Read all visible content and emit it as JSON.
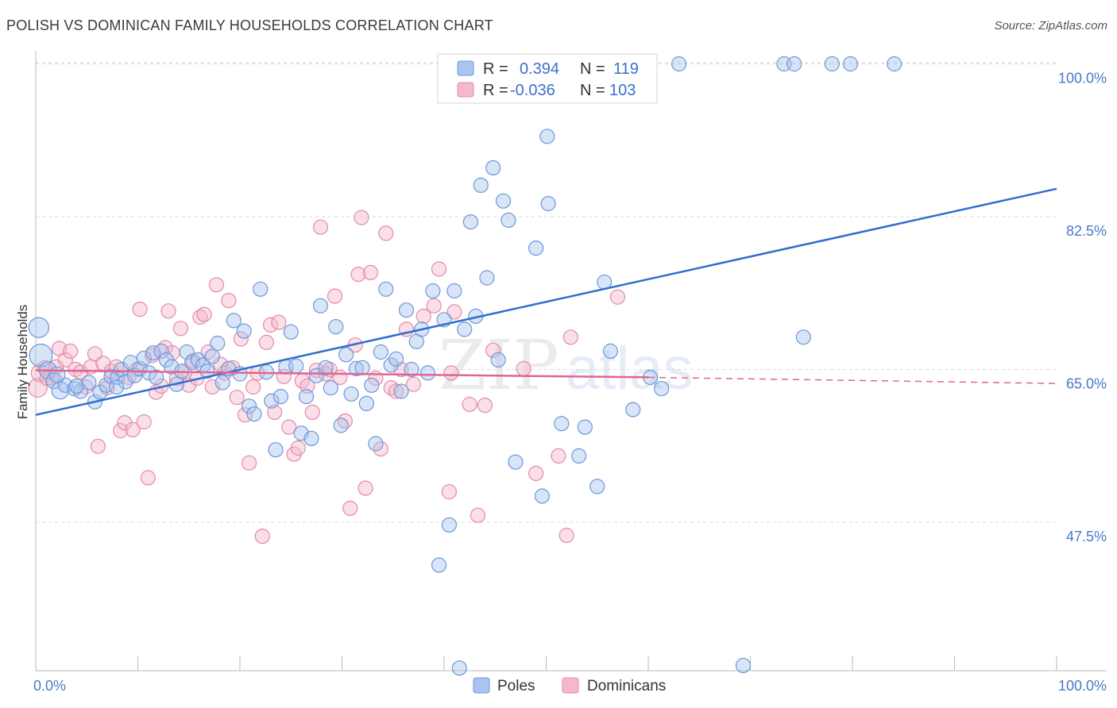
{
  "title": "POLISH VS DOMINICAN FAMILY HOUSEHOLDS CORRELATION CHART",
  "source": "Source: ZipAtlas.com",
  "watermark": {
    "zip": "ZIP",
    "atlas": "atlas"
  },
  "colors": {
    "poles_fill": "#a9c4ee",
    "poles_stroke": "#6f98d8",
    "poles_line": "#2f6fcf",
    "dom_fill": "#f5b8cb",
    "dom_stroke": "#e48aa8",
    "dom_line": "#e0668f",
    "tick_label": "#4a78c8",
    "grid": "#d9d9d9"
  },
  "legend": {
    "r_label": "R =",
    "n_label": "N =",
    "rows": [
      {
        "series": "Poles",
        "r": "0.394",
        "n": "119"
      },
      {
        "series": "Dominicans",
        "r": "-0.036",
        "n": "103"
      }
    ]
  },
  "bottom_legend": [
    "Poles",
    "Dominicans"
  ],
  "chart_data": {
    "type": "scatter",
    "title": "POLISH VS DOMINICAN FAMILY HOUSEHOLDS CORRELATION CHART",
    "xlabel": "",
    "ylabel": "Family Households",
    "xlim": [
      0,
      100
    ],
    "ylim": [
      30.5,
      101.5
    ],
    "x_tick_labels": [
      "0.0%",
      "100.0%"
    ],
    "y_ticks": [
      47.5,
      65.0,
      82.5,
      100.0
    ],
    "y_tick_labels": [
      "47.5%",
      "65.0%",
      "82.5%",
      "100.0%"
    ],
    "grid": true,
    "legend_position": "top-center",
    "series": [
      {
        "name": "Poles",
        "r": 0.394,
        "n": 119,
        "trend": {
          "x": [
            0,
            100
          ],
          "y": [
            59.8,
            85.7
          ],
          "style": "solid"
        },
        "points": [
          [
            0.3,
            69.8,
            1.4
          ],
          [
            0.5,
            66.6,
            1.6
          ],
          [
            1.2,
            64.9,
            1.2
          ],
          [
            1.8,
            63.7,
            1.1
          ],
          [
            2.4,
            62.6,
            1.2
          ],
          [
            2.9,
            63.2,
            1.0
          ],
          [
            3.8,
            62.8,
            1.0
          ],
          [
            4.4,
            62.5,
            1.0
          ],
          [
            5.2,
            63.5,
            1.0
          ],
          [
            5.8,
            61.3,
            1.0
          ],
          [
            6.3,
            62.4,
            1.0
          ],
          [
            6.9,
            63.2,
            1.0
          ],
          [
            7.4,
            64.2,
            1.0
          ],
          [
            8.0,
            64.1,
            1.0
          ],
          [
            8.4,
            65.0,
            1.0
          ],
          [
            8.8,
            63.6,
            1.0
          ],
          [
            9.3,
            65.8,
            1.0
          ],
          [
            9.7,
            64.3,
            1.0
          ],
          [
            10.2,
            65.1,
            1.0
          ],
          [
            10.6,
            66.3,
            1.0
          ],
          [
            11.1,
            64.6,
            1.0
          ],
          [
            11.5,
            66.9,
            1.0
          ],
          [
            11.8,
            64.1,
            1.0
          ],
          [
            12.3,
            67.1,
            1.0
          ],
          [
            12.8,
            66.1,
            1.0
          ],
          [
            13.3,
            65.3,
            1.0
          ],
          [
            13.8,
            63.3,
            1.0
          ],
          [
            14.3,
            64.8,
            1.0
          ],
          [
            14.8,
            67.0,
            1.0
          ],
          [
            15.3,
            65.8,
            1.0
          ],
          [
            15.9,
            66.1,
            1.0
          ],
          [
            16.4,
            65.5,
            1.0
          ],
          [
            16.8,
            64.8,
            1.0
          ],
          [
            17.3,
            66.5,
            1.0
          ],
          [
            17.8,
            68.0,
            1.0
          ],
          [
            18.3,
            63.5,
            1.0
          ],
          [
            18.9,
            65.1,
            1.0
          ],
          [
            19.4,
            70.6,
            1.0
          ],
          [
            20.0,
            64.5,
            1.0
          ],
          [
            20.4,
            69.4,
            1.0
          ],
          [
            20.9,
            60.8,
            1.0
          ],
          [
            21.4,
            59.9,
            1.0
          ],
          [
            22.0,
            74.2,
            1.0
          ],
          [
            22.6,
            64.7,
            1.0
          ],
          [
            23.1,
            61.4,
            1.0
          ],
          [
            23.5,
            55.8,
            1.0
          ],
          [
            24.0,
            61.9,
            1.0
          ],
          [
            24.5,
            65.3,
            1.0
          ],
          [
            25.0,
            69.3,
            1.0
          ],
          [
            25.5,
            65.4,
            1.0
          ],
          [
            26.0,
            57.7,
            1.0
          ],
          [
            26.5,
            61.9,
            1.0
          ],
          [
            27.0,
            57.1,
            1.0
          ],
          [
            27.5,
            64.3,
            1.0
          ],
          [
            27.9,
            72.3,
            1.0
          ],
          [
            28.4,
            65.2,
            1.0
          ],
          [
            28.9,
            62.9,
            1.0
          ],
          [
            29.4,
            69.9,
            1.0
          ],
          [
            29.9,
            58.6,
            1.0
          ],
          [
            30.4,
            66.7,
            1.0
          ],
          [
            30.9,
            62.2,
            1.0
          ],
          [
            31.4,
            65.1,
            1.0
          ],
          [
            32.0,
            65.2,
            1.0
          ],
          [
            32.4,
            61.1,
            1.0
          ],
          [
            32.9,
            63.2,
            1.0
          ],
          [
            33.3,
            56.5,
            1.0
          ],
          [
            33.8,
            67.0,
            1.0
          ],
          [
            34.3,
            74.2,
            1.0
          ],
          [
            34.8,
            65.5,
            1.0
          ],
          [
            35.3,
            66.2,
            1.0
          ],
          [
            35.8,
            62.5,
            1.0
          ],
          [
            36.3,
            71.8,
            1.0
          ],
          [
            36.8,
            65.0,
            1.0
          ],
          [
            37.3,
            68.2,
            1.0
          ],
          [
            37.8,
            69.6,
            1.0
          ],
          [
            38.4,
            64.6,
            1.0
          ],
          [
            38.9,
            74.0,
            1.0
          ],
          [
            39.5,
            42.6,
            1.0
          ],
          [
            40.0,
            70.7,
            1.0
          ],
          [
            40.5,
            47.2,
            1.0
          ],
          [
            41.0,
            74.0,
            1.0
          ],
          [
            41.5,
            30.8,
            1.0
          ],
          [
            42.0,
            69.6,
            1.0
          ],
          [
            42.6,
            81.9,
            1.0
          ],
          [
            43.1,
            71.1,
            1.0
          ],
          [
            43.6,
            86.1,
            1.0
          ],
          [
            44.2,
            75.5,
            1.0
          ],
          [
            44.8,
            88.1,
            1.0
          ],
          [
            45.3,
            66.1,
            1.0
          ],
          [
            45.8,
            84.3,
            1.0
          ],
          [
            46.3,
            82.1,
            1.0
          ],
          [
            47.0,
            54.4,
            1.0
          ],
          [
            47.6,
            100.0,
            1.0
          ],
          [
            48.2,
            100.0,
            1.0
          ],
          [
            49.0,
            78.9,
            1.0
          ],
          [
            49.6,
            50.5,
            1.0
          ],
          [
            50.1,
            91.7,
            1.0
          ],
          [
            50.2,
            84.0,
            1.0
          ],
          [
            51.5,
            58.8,
            1.0
          ],
          [
            52.5,
            100.0,
            1.0
          ],
          [
            53.2,
            55.1,
            1.0
          ],
          [
            53.8,
            58.4,
            1.0
          ],
          [
            55.0,
            51.6,
            1.0
          ],
          [
            55.7,
            75.0,
            1.0
          ],
          [
            56.3,
            67.1,
            1.0
          ],
          [
            58.5,
            60.4,
            1.0
          ],
          [
            60.2,
            64.1,
            1.0
          ],
          [
            61.3,
            62.8,
            1.0
          ],
          [
            63.0,
            100.0,
            1.0
          ],
          [
            69.3,
            31.1,
            1.0
          ],
          [
            73.3,
            100.0,
            1.0
          ],
          [
            74.3,
            100.0,
            1.0
          ],
          [
            75.2,
            68.7,
            1.0
          ],
          [
            78.0,
            100.0,
            1.0
          ],
          [
            79.8,
            100.0,
            1.0
          ],
          [
            84.1,
            100.0,
            1.0
          ],
          [
            2.1,
            64.4,
            1.1
          ],
          [
            4.0,
            63.1,
            1.0
          ],
          [
            7.9,
            63.0,
            1.0
          ]
        ]
      },
      {
        "name": "Dominicans",
        "r": -0.036,
        "n": 103,
        "trend": {
          "x": [
            0,
            60
          ],
          "y": [
            64.9,
            64.1
          ],
          "style": "solid"
        },
        "trend_extension": {
          "x": [
            60,
            100
          ],
          "y": [
            64.1,
            63.4
          ],
          "style": "dashed"
        },
        "points": [
          [
            0.2,
            62.9,
            1.3
          ],
          [
            0.4,
            64.6,
            1.2
          ],
          [
            0.9,
            65.2,
            1.0
          ],
          [
            1.5,
            64.1,
            1.1
          ],
          [
            2.0,
            65.3,
            1.0
          ],
          [
            2.3,
            67.4,
            1.0
          ],
          [
            2.9,
            66.1,
            1.0
          ],
          [
            3.4,
            67.1,
            1.0
          ],
          [
            3.9,
            65.0,
            1.0
          ],
          [
            4.4,
            64.7,
            1.0
          ],
          [
            4.9,
            63.0,
            1.0
          ],
          [
            5.4,
            65.3,
            1.0
          ],
          [
            5.8,
            66.8,
            1.0
          ],
          [
            6.1,
            56.2,
            1.0
          ],
          [
            6.6,
            65.7,
            1.0
          ],
          [
            7.0,
            62.9,
            1.0
          ],
          [
            7.4,
            64.8,
            1.0
          ],
          [
            7.9,
            65.3,
            1.0
          ],
          [
            8.3,
            58.0,
            1.0
          ],
          [
            8.7,
            58.9,
            1.0
          ],
          [
            9.1,
            64.1,
            1.0
          ],
          [
            9.5,
            58.1,
            1.0
          ],
          [
            9.9,
            65.0,
            1.0
          ],
          [
            10.2,
            71.9,
            1.0
          ],
          [
            10.6,
            59.0,
            1.0
          ],
          [
            11.0,
            52.6,
            1.0
          ],
          [
            11.4,
            66.6,
            1.0
          ],
          [
            11.8,
            62.4,
            1.0
          ],
          [
            12.3,
            63.1,
            1.0
          ],
          [
            12.7,
            67.5,
            1.0
          ],
          [
            13.0,
            71.7,
            1.0
          ],
          [
            13.4,
            66.9,
            1.0
          ],
          [
            13.8,
            64.0,
            1.0
          ],
          [
            14.2,
            69.7,
            1.0
          ],
          [
            14.6,
            64.7,
            1.0
          ],
          [
            15.0,
            63.2,
            1.0
          ],
          [
            15.4,
            66.0,
            1.0
          ],
          [
            15.8,
            64.0,
            1.0
          ],
          [
            16.1,
            71.0,
            1.0
          ],
          [
            16.5,
            71.3,
            1.0
          ],
          [
            16.9,
            67.0,
            1.0
          ],
          [
            17.3,
            63.0,
            1.0
          ],
          [
            17.7,
            74.7,
            1.0
          ],
          [
            18.1,
            65.6,
            1.0
          ],
          [
            18.5,
            64.6,
            1.0
          ],
          [
            18.9,
            72.9,
            1.0
          ],
          [
            19.3,
            65.2,
            1.0
          ],
          [
            19.7,
            61.8,
            1.0
          ],
          [
            20.1,
            68.5,
            1.0
          ],
          [
            20.5,
            59.8,
            1.0
          ],
          [
            20.9,
            54.3,
            1.0
          ],
          [
            21.3,
            63.0,
            1.0
          ],
          [
            21.7,
            64.6,
            1.0
          ],
          [
            22.2,
            45.9,
            1.0
          ],
          [
            22.6,
            68.1,
            1.0
          ],
          [
            23.0,
            70.1,
            1.0
          ],
          [
            23.4,
            60.1,
            1.0
          ],
          [
            23.8,
            70.4,
            1.0
          ],
          [
            24.3,
            64.2,
            1.0
          ],
          [
            24.8,
            58.4,
            1.0
          ],
          [
            25.3,
            55.3,
            1.0
          ],
          [
            25.7,
            56.0,
            1.0
          ],
          [
            26.1,
            63.7,
            1.0
          ],
          [
            26.6,
            63.1,
            1.0
          ],
          [
            27.1,
            60.1,
            1.0
          ],
          [
            27.5,
            64.9,
            1.0
          ],
          [
            27.9,
            81.3,
            1.0
          ],
          [
            28.4,
            64.5,
            1.0
          ],
          [
            28.8,
            65.0,
            1.0
          ],
          [
            29.3,
            73.4,
            1.0
          ],
          [
            29.8,
            64.1,
            1.0
          ],
          [
            30.3,
            59.1,
            1.0
          ],
          [
            30.8,
            49.1,
            1.0
          ],
          [
            31.3,
            67.8,
            1.0
          ],
          [
            31.6,
            75.9,
            1.0
          ],
          [
            31.9,
            82.4,
            1.0
          ],
          [
            32.3,
            51.4,
            1.0
          ],
          [
            32.8,
            76.1,
            1.0
          ],
          [
            33.3,
            64.0,
            1.0
          ],
          [
            33.8,
            55.9,
            1.0
          ],
          [
            34.3,
            80.6,
            1.0
          ],
          [
            34.8,
            62.9,
            1.0
          ],
          [
            35.3,
            62.5,
            1.0
          ],
          [
            35.8,
            65.0,
            1.0
          ],
          [
            36.3,
            69.6,
            1.0
          ],
          [
            37.0,
            63.3,
            1.0
          ],
          [
            38.0,
            71.1,
            1.0
          ],
          [
            39.0,
            72.3,
            1.0
          ],
          [
            39.5,
            76.5,
            1.0
          ],
          [
            40.5,
            51.0,
            1.0
          ],
          [
            40.7,
            64.6,
            1.0
          ],
          [
            41.0,
            71.6,
            1.0
          ],
          [
            42.5,
            61.0,
            1.0
          ],
          [
            43.3,
            48.3,
            1.0
          ],
          [
            44.0,
            60.9,
            1.0
          ],
          [
            44.8,
            67.2,
            1.0
          ],
          [
            47.8,
            65.1,
            1.0
          ],
          [
            49.0,
            53.1,
            1.0
          ],
          [
            51.2,
            55.1,
            1.0
          ],
          [
            52.0,
            46.0,
            1.0
          ],
          [
            52.4,
            68.7,
            1.0
          ],
          [
            57.0,
            73.3,
            1.0
          ],
          [
            1.1,
            64.0,
            1.0
          ]
        ]
      }
    ]
  }
}
